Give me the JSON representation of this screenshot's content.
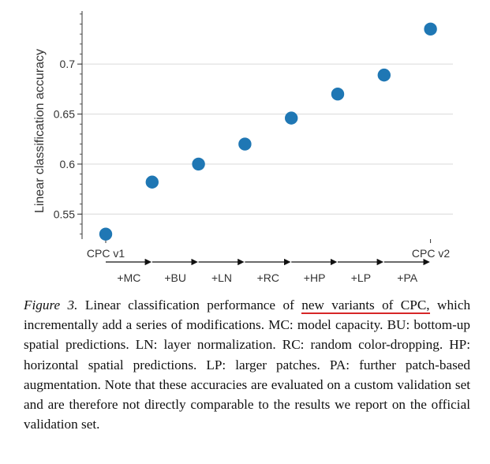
{
  "chart_data": {
    "type": "scatter",
    "ylabel": "Linear classification accuracy",
    "xlabel": "",
    "ylim": [
      0.525,
      0.753
    ],
    "yticks": [
      0.55,
      0.6,
      0.65,
      0.7
    ],
    "y_minor_step": 0.01,
    "grid": true,
    "start_label": "CPC v1",
    "end_label": "CPC v2",
    "step_labels": [
      "+MC",
      "+BU",
      "+LN",
      "+RC",
      "+HP",
      "+LP",
      "+PA"
    ],
    "categories": [
      "CPC v1",
      "+MC",
      "+BU",
      "+LN",
      "+RC",
      "+HP",
      "+LP",
      "+PA"
    ],
    "values": [
      0.53,
      0.582,
      0.6,
      0.62,
      0.646,
      0.67,
      0.689,
      0.735
    ],
    "marker_color": "#1f77b4"
  },
  "caption": {
    "figure_label": "Figure 3.",
    "text_before": "Linear classification performance of",
    "highlight": "new variants of CPC,",
    "text_after": "which incrementally add a series of modifications. MC: model capacity. BU: bottom-up spatial predictions. LN: layer normalization. RC: random color-dropping. HP: horizontal spatial predictions. LP: larger patches. PA: further patch-based augmentation. Note that these accuracies are evaluated on a custom validation set and are therefore not directly comparable to the results we report on the official validation set."
  }
}
